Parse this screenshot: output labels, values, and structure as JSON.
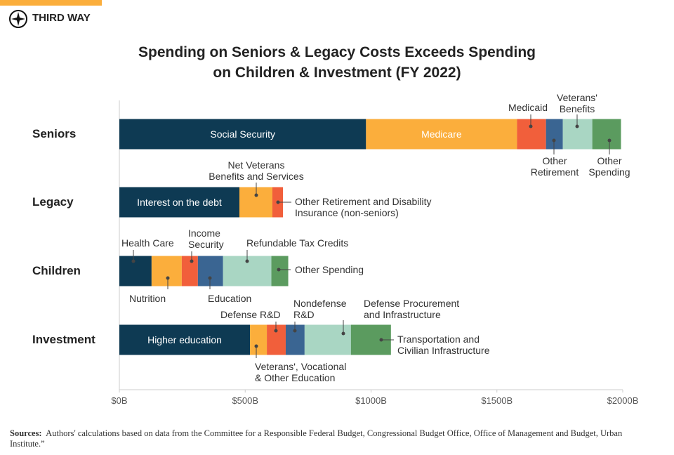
{
  "brand": "THIRD WAY",
  "chart_data": {
    "type": "stacked-bar-horizontal",
    "title": "Spending on Seniors & Legacy Costs Exceeds Spending\non Children & Investment (FY 2022)",
    "colors": [
      "#0e3a53",
      "#fbae3c",
      "#f15f3b",
      "#3a6592",
      "#a9d6c3",
      "#5b9b5f"
    ],
    "groups": [
      {
        "name": "Seniors",
        "segments": [
          {
            "name": "Social Security",
            "value": 980
          },
          {
            "name": "Medicare",
            "value": 600
          },
          {
            "name": "Medicaid",
            "value": 115
          },
          {
            "name": "Other\nRetirement",
            "value": 67
          },
          {
            "name": "Veterans'\nBenefits",
            "value": 117
          },
          {
            "name": "Other\nSpending",
            "value": 114
          }
        ]
      },
      {
        "name": "Legacy",
        "segments": [
          {
            "name": "Interest on the debt",
            "value": 477
          },
          {
            "name": "Net Veterans\nBenefits and Services",
            "value": 131
          },
          {
            "name": "Other Retirement and Disability\nInsurance (non-seniors)",
            "value": 42
          }
        ]
      },
      {
        "name": "Children",
        "segments": [
          {
            "name": "Health Care",
            "value": 128
          },
          {
            "name": "Nutrition",
            "value": 120
          },
          {
            "name": "Income\nSecurity",
            "value": 64
          },
          {
            "name": "Education",
            "value": 100
          },
          {
            "name": "Refundable Tax Credits",
            "value": 192
          },
          {
            "name": "Other Spending",
            "value": 67
          }
        ]
      },
      {
        "name": "Investment",
        "segments": [
          {
            "name": "Higher education",
            "value": 519
          },
          {
            "name": "Veterans', Vocational\n& Other Education",
            "value": 67
          },
          {
            "name": "Defense R&D",
            "value": 75
          },
          {
            "name": "Nondefense\nR&D",
            "value": 75
          },
          {
            "name": "Defense Procurement\nand Infrastructure",
            "value": 184
          },
          {
            "name": "Transportation and\nCivilian Infrastructure",
            "value": 159
          }
        ]
      }
    ],
    "xlim": [
      0,
      2000
    ],
    "xticks": [
      {
        "value": 0,
        "label": "$0B"
      },
      {
        "value": 500,
        "label": "$500B"
      },
      {
        "value": 1000,
        "label": "$1000B"
      },
      {
        "value": 1500,
        "label": "$1500B"
      },
      {
        "value": 2000,
        "label": "$2000B"
      }
    ]
  },
  "source": {
    "label": "Sources:",
    "text": "Authors' calculations based on data from the Committee for a Responsible Federal Budget, Congressional Budget Office, Office of Management and Budget, Urban Institute.”"
  }
}
